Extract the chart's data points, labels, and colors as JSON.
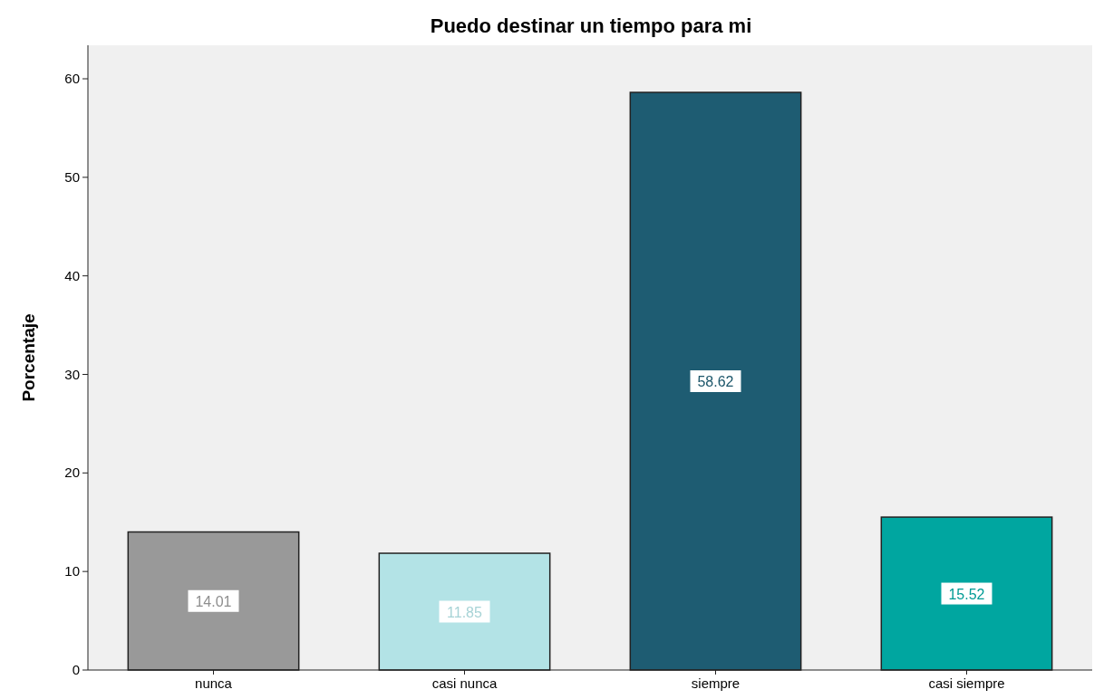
{
  "chart_data": {
    "type": "bar",
    "title": "Puedo destinar un tiempo para mi",
    "ylabel": "Porcentaje",
    "categories": [
      "nunca",
      "casi nunca",
      "siempre",
      "casi siempre"
    ],
    "values": [
      14.01,
      11.85,
      58.62,
      15.52
    ],
    "colors": [
      "#999999",
      "#b3e3e6",
      "#1e5c72",
      "#00a6a0"
    ],
    "ylim": [
      0,
      63.4
    ],
    "yticks": [
      0,
      10,
      20,
      30,
      40,
      50,
      60
    ],
    "data_labels": true
  }
}
